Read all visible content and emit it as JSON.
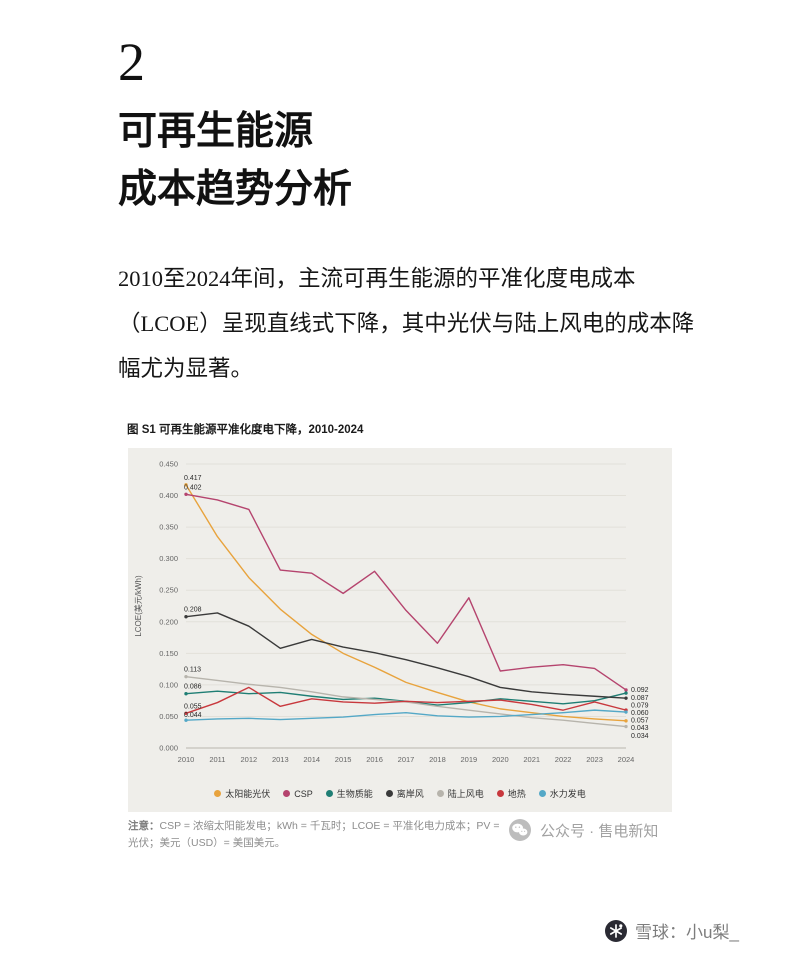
{
  "header": {
    "chapter_number": "2",
    "title_line1": "可再生能源",
    "title_line2": "成本趋势分析"
  },
  "intro": {
    "text": "2010至2024年间，主流可再生能源的平准化度电成本（LCOE）呈现直线式下降，其中光伏与陆上风电的成本降幅尤为显著。"
  },
  "figure": {
    "title": "图 S1 可再生能源平准化度电下降，2010-2024",
    "note_label": "注意：",
    "note_body": "CSP = 浓缩太阳能发电；kWh = 千瓦时；LCOE = 平准化电力成本；PV = 光伏；美元（USD）= 美国美元。",
    "panel_bg": "#efeeea"
  },
  "chart_data": {
    "type": "line",
    "title": "图 S1 可再生能源平准化度电下降，2010-2024",
    "ylabel": "LCOE(美元/kWh)",
    "xlabel": "",
    "x": [
      2010,
      2011,
      2012,
      2013,
      2014,
      2015,
      2016,
      2017,
      2018,
      2019,
      2020,
      2021,
      2022,
      2023,
      2024
    ],
    "ylim": [
      0,
      0.45
    ],
    "ytick_step": 0.05,
    "grid": true,
    "legend_position": "bottom",
    "series": [
      {
        "name": "太阳能光伏",
        "color": "#E8A33D",
        "values": [
          0.417,
          0.335,
          0.27,
          0.22,
          0.18,
          0.15,
          0.128,
          0.104,
          0.088,
          0.073,
          0.062,
          0.056,
          0.05,
          0.046,
          0.043
        ]
      },
      {
        "name": "CSP",
        "color": "#B5446E",
        "values": [
          0.402,
          0.393,
          0.378,
          0.282,
          0.277,
          0.245,
          0.28,
          0.218,
          0.166,
          0.238,
          0.122,
          0.128,
          0.132,
          0.126,
          0.092
        ]
      },
      {
        "name": "生物质能",
        "color": "#1F7E74",
        "values": [
          0.086,
          0.09,
          0.086,
          0.088,
          0.082,
          0.077,
          0.079,
          0.074,
          0.068,
          0.072,
          0.078,
          0.074,
          0.07,
          0.075,
          0.087
        ]
      },
      {
        "name": "离岸风",
        "color": "#3A3A3A",
        "values": [
          0.208,
          0.214,
          0.193,
          0.158,
          0.172,
          0.16,
          0.151,
          0.14,
          0.127,
          0.113,
          0.096,
          0.089,
          0.085,
          0.082,
          0.079
        ]
      },
      {
        "name": "陆上风电",
        "color": "#B7B4AC",
        "values": [
          0.113,
          0.107,
          0.101,
          0.096,
          0.089,
          0.081,
          0.077,
          0.073,
          0.066,
          0.06,
          0.054,
          0.048,
          0.044,
          0.039,
          0.034
        ]
      },
      {
        "name": "地热",
        "color": "#C8383D",
        "values": [
          0.055,
          0.072,
          0.096,
          0.066,
          0.078,
          0.073,
          0.071,
          0.074,
          0.072,
          0.074,
          0.076,
          0.069,
          0.06,
          0.073,
          0.06
        ]
      },
      {
        "name": "水力发电",
        "color": "#54A8C7",
        "values": [
          0.044,
          0.046,
          0.047,
          0.045,
          0.047,
          0.049,
          0.053,
          0.056,
          0.051,
          0.049,
          0.05,
          0.053,
          0.056,
          0.06,
          0.057
        ]
      }
    ]
  },
  "watermark": {
    "text": "公众号 · 售电新知"
  },
  "footer": {
    "text": "雪球：小u梨_"
  }
}
